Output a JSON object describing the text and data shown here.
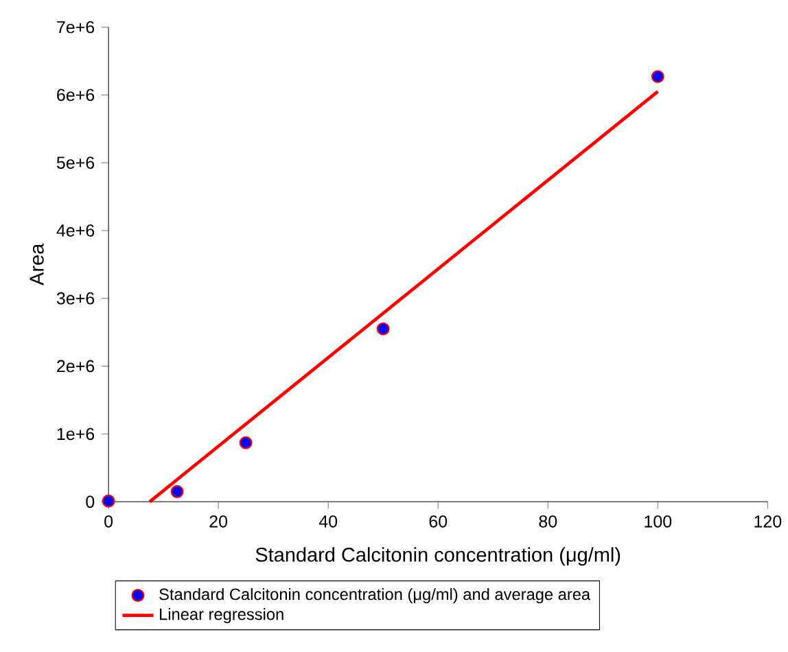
{
  "chart_data": {
    "type": "scatter",
    "xlabel": "Standard Calcitonin concentration (μg/ml)",
    "ylabel": "Area",
    "xlim": [
      0,
      120
    ],
    "ylim": [
      0,
      7000000
    ],
    "xticks": [
      0,
      20,
      40,
      60,
      80,
      100,
      120
    ],
    "yticks": [
      0,
      {
        "value": 1000000,
        "label": "1e+6"
      },
      {
        "value": 2000000,
        "label": "2e+6"
      },
      {
        "value": 3000000,
        "label": "3e+6"
      },
      {
        "value": 4000000,
        "label": "4e+6"
      },
      {
        "value": 5000000,
        "label": "5e+6"
      },
      {
        "value": 6000000,
        "label": "6e+6"
      },
      {
        "value": 7000000,
        "label": "7e+6"
      }
    ],
    "legend": "bottom",
    "grid": false,
    "series": [
      {
        "name": "Standard Calcitonin concentration (μg/ml) and average area",
        "marker": "circle",
        "color": "#0000ff",
        "x": [
          0,
          12.5,
          25,
          50,
          100
        ],
        "values": [
          10000,
          150000,
          870000,
          2550000,
          6270000
        ]
      },
      {
        "name": "Linear regression",
        "type": "line",
        "marker": "none",
        "color": "#ff0000",
        "x": [
          7.5,
          100
        ],
        "values": [
          0,
          6050000
        ]
      }
    ]
  }
}
